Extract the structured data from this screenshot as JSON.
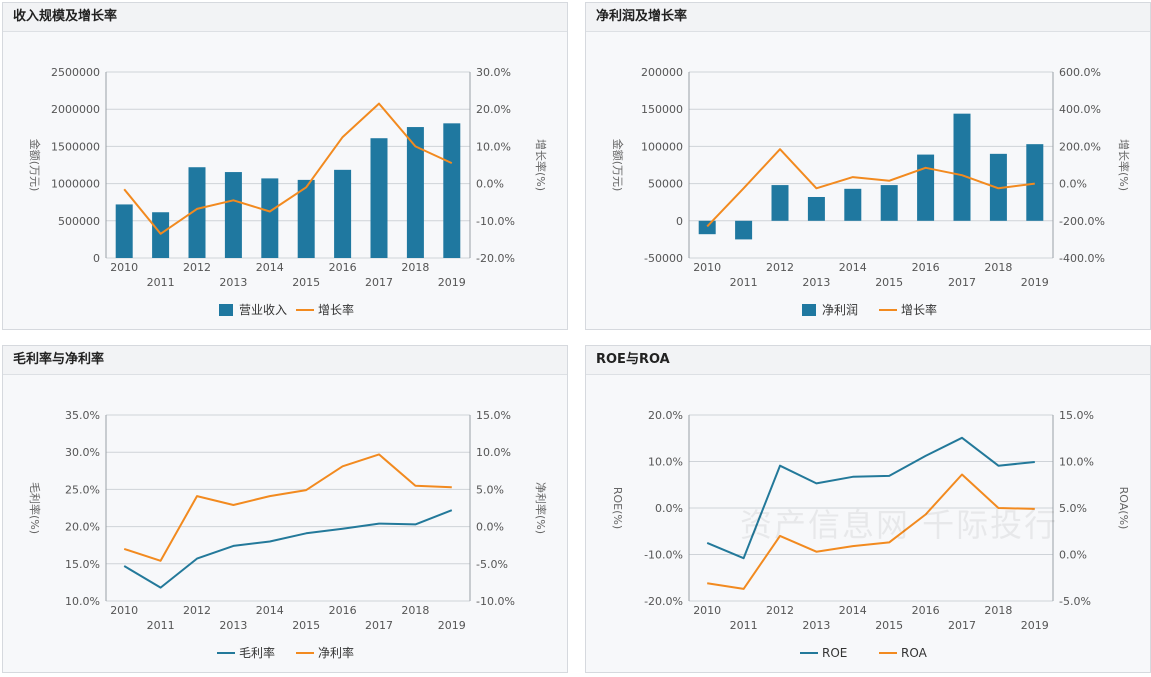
{
  "watermark": "资产信息网 千际投行",
  "colors": {
    "bar": "#1f78a0",
    "line_orange": "#f28a1f",
    "line_blue": "#23799a",
    "grid": "#cfd3d8",
    "axis": "#9aa0a6"
  },
  "chart_data": [
    {
      "id": "c1",
      "type": "bar",
      "title": "收入规模及增长率",
      "categories": [
        "2010",
        "2011",
        "2012",
        "2013",
        "2014",
        "2015",
        "2016",
        "2017",
        "2018",
        "2019"
      ],
      "series": [
        {
          "name": "营业收入",
          "kind": "bar",
          "axis": "left",
          "values": [
            720000,
            615000,
            1220000,
            1155000,
            1070000,
            1050000,
            1185000,
            1610000,
            1760000,
            1810000
          ]
        },
        {
          "name": "增长率",
          "kind": "line",
          "axis": "right",
          "color": "orange",
          "values": [
            -1.5,
            -13.5,
            -6.8,
            -4.5,
            -7.5,
            -1.0,
            12.5,
            21.5,
            10.0,
            5.5
          ]
        }
      ],
      "left_axis": {
        "label": "金额(万元)",
        "ylim": [
          0,
          2500000
        ],
        "ticks": [
          "0",
          "500000",
          "1000000",
          "1500000",
          "2000000",
          "2500000"
        ]
      },
      "right_axis": {
        "label": "增长率(%)",
        "ylim": [
          -20,
          30
        ],
        "ticks": [
          "-20.0%",
          "-10.0%",
          "0.0%",
          "10.0%",
          "20.0%",
          "30.0%"
        ]
      },
      "legend": [
        "营业收入",
        "增长率"
      ]
    },
    {
      "id": "c2",
      "type": "bar",
      "title": "净利润及增长率",
      "categories": [
        "2010",
        "2011",
        "2012",
        "2013",
        "2014",
        "2015",
        "2016",
        "2017",
        "2018",
        "2019"
      ],
      "series": [
        {
          "name": "净利润",
          "kind": "bar",
          "axis": "left",
          "values": [
            -18000,
            -25000,
            48000,
            32000,
            43000,
            48000,
            89000,
            144000,
            90000,
            103000
          ]
        },
        {
          "name": "增长率",
          "kind": "line",
          "axis": "right",
          "color": "orange",
          "values": [
            -230,
            -25,
            185,
            -25,
            35,
            15,
            85,
            45,
            -25,
            0
          ]
        }
      ],
      "left_axis": {
        "label": "金额(万元)",
        "ylim": [
          -50000,
          200000
        ],
        "ticks": [
          "-50000",
          "0",
          "50000",
          "100000",
          "150000",
          "200000"
        ]
      },
      "right_axis": {
        "label": "增长率(%)",
        "ylim": [
          -400,
          600
        ],
        "ticks": [
          "-400.0%",
          "-200.0%",
          "0.0%",
          "200.0%",
          "400.0%",
          "600.0%"
        ]
      },
      "legend": [
        "净利润",
        "增长率"
      ]
    },
    {
      "id": "c3",
      "type": "line",
      "title": "毛利率与净利率",
      "categories": [
        "2010",
        "2011",
        "2012",
        "2013",
        "2014",
        "2015",
        "2016",
        "2017",
        "2018",
        "2019"
      ],
      "series": [
        {
          "name": "毛利率",
          "kind": "line",
          "axis": "left",
          "color": "blue",
          "values": [
            14.7,
            11.8,
            15.7,
            17.4,
            18.0,
            19.1,
            19.7,
            20.4,
            20.3,
            22.2
          ]
        },
        {
          "name": "净利率",
          "kind": "line",
          "axis": "right",
          "color": "orange",
          "values": [
            -3.0,
            -4.6,
            4.1,
            2.9,
            4.1,
            4.9,
            8.1,
            9.7,
            5.5,
            5.3
          ]
        }
      ],
      "left_axis": {
        "label": "毛利率(%)",
        "ylim": [
          10,
          35
        ],
        "ticks": [
          "10.0%",
          "15.0%",
          "20.0%",
          "25.0%",
          "30.0%",
          "35.0%"
        ]
      },
      "right_axis": {
        "label": "净利率(%)",
        "ylim": [
          -10,
          15
        ],
        "ticks": [
          "-10.0%",
          "-5.0%",
          "0.0%",
          "5.0%",
          "10.0%",
          "15.0%"
        ]
      },
      "legend": [
        "毛利率",
        "净利率"
      ]
    },
    {
      "id": "c4",
      "type": "line",
      "title": "ROE与ROA",
      "categories": [
        "2010",
        "2011",
        "2012",
        "2013",
        "2014",
        "2015",
        "2016",
        "2017",
        "2018",
        "2019"
      ],
      "series": [
        {
          "name": "ROE",
          "kind": "line",
          "axis": "left",
          "color": "blue",
          "values": [
            -7.5,
            -10.8,
            9.1,
            5.3,
            6.7,
            6.9,
            11.2,
            15.1,
            9.1,
            9.9
          ]
        },
        {
          "name": "ROA",
          "kind": "line",
          "axis": "right",
          "color": "orange",
          "values": [
            -3.1,
            -3.7,
            2.0,
            0.3,
            0.9,
            1.3,
            4.3,
            8.6,
            5.0,
            4.9
          ]
        }
      ],
      "left_axis": {
        "label": "ROE(%)",
        "ylim": [
          -20,
          20
        ],
        "ticks": [
          "-20.0%",
          "-10.0%",
          "0.0%",
          "10.0%",
          "20.0%"
        ]
      },
      "right_axis": {
        "label": "ROA(%)",
        "ylim": [
          -5,
          15
        ],
        "ticks": [
          "-5.0%",
          "0.0%",
          "5.0%",
          "10.0%",
          "15.0%"
        ]
      },
      "legend": [
        "ROE",
        "ROA"
      ]
    }
  ]
}
